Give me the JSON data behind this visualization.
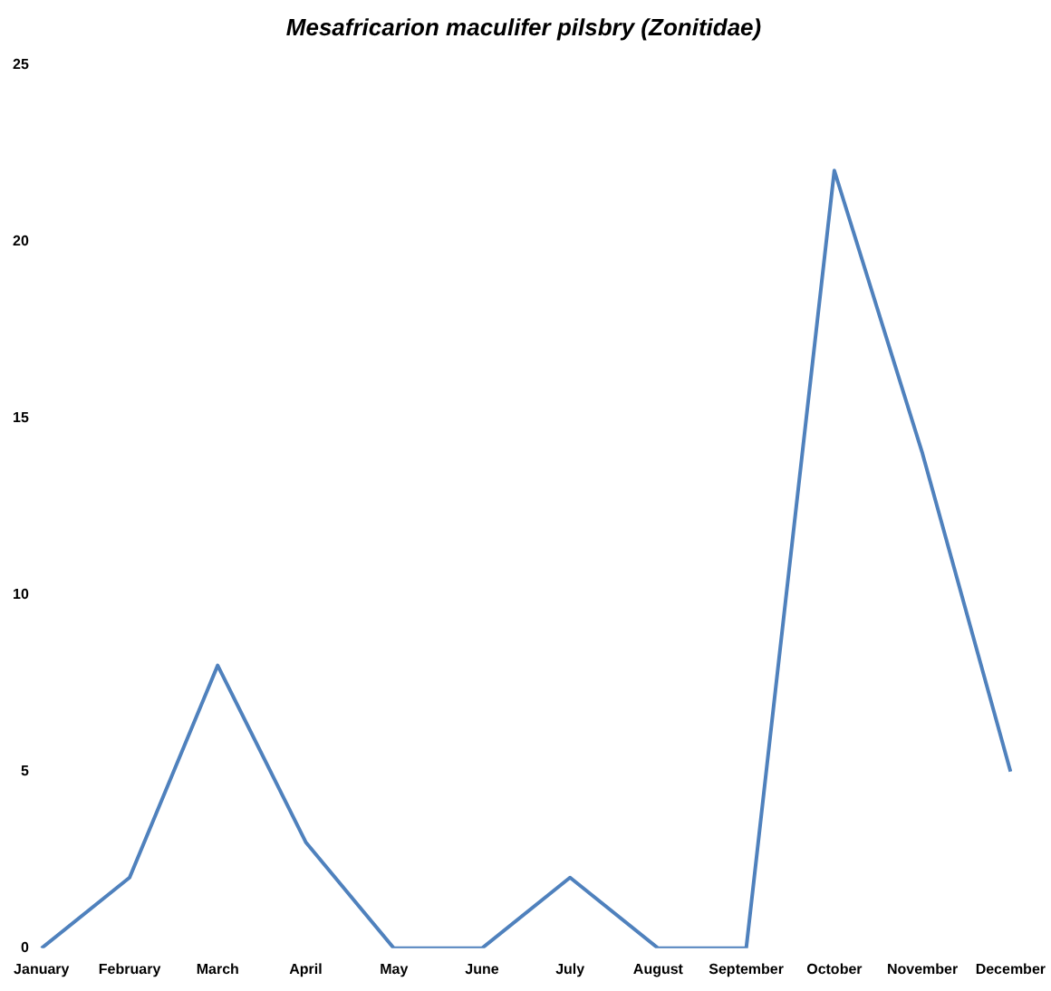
{
  "chart_data": {
    "type": "line",
    "title": "Mesafricarion maculifer pilsbry (Zonitidae)",
    "categories": [
      "January",
      "February",
      "March",
      "April",
      "May",
      "June",
      "July",
      "August",
      "September",
      "October",
      "November",
      "December"
    ],
    "series": [
      {
        "color": "#4f81bd",
        "values": [
          0,
          2,
          8,
          3,
          0,
          0,
          2,
          0,
          0,
          22,
          14,
          5
        ]
      }
    ],
    "ylim": [
      0,
      25
    ],
    "yticks": [
      0,
      5,
      10,
      15,
      20,
      25
    ],
    "grid": false,
    "legend": false,
    "marker": "none",
    "line_style": "solid"
  }
}
